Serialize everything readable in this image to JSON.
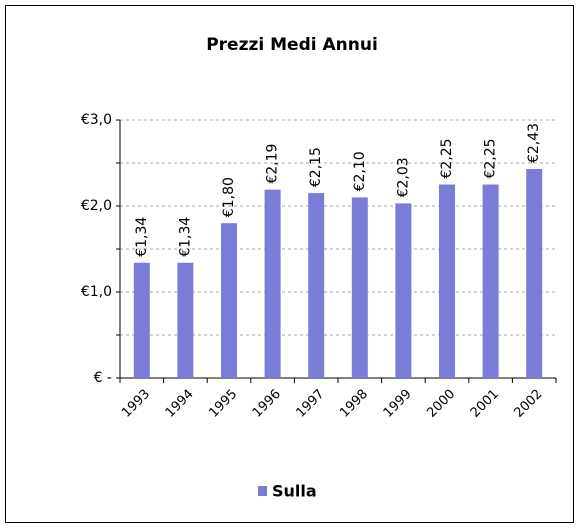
{
  "chart_data": {
    "type": "bar",
    "title": "Prezzi Medi Annui",
    "categories": [
      "1993",
      "1994",
      "1995",
      "1996",
      "1997",
      "1998",
      "1999",
      "2000",
      "2001",
      "2002"
    ],
    "series": [
      {
        "name": "Sulla",
        "color": "#7b7bd8",
        "values": [
          1.34,
          1.34,
          1.8,
          2.19,
          2.15,
          2.1,
          2.03,
          2.25,
          2.25,
          2.43
        ],
        "value_labels": [
          "€1,34",
          "€1,34",
          "€1,80",
          "€2,19",
          "€2,15",
          "€2,10",
          "€2,03",
          "€2,25",
          "€2,25",
          "€2,43"
        ]
      }
    ],
    "ylim": [
      0,
      3
    ],
    "yticks": [
      {
        "value": 0,
        "label": "€ -"
      },
      {
        "value": 1,
        "label": "€1,0"
      },
      {
        "value": 2,
        "label": "€2,0"
      },
      {
        "value": 3,
        "label": "€3,0"
      }
    ],
    "minor_yticks": [
      0.5,
      1.5,
      2.5
    ],
    "grid": true,
    "legend": "bottom"
  }
}
